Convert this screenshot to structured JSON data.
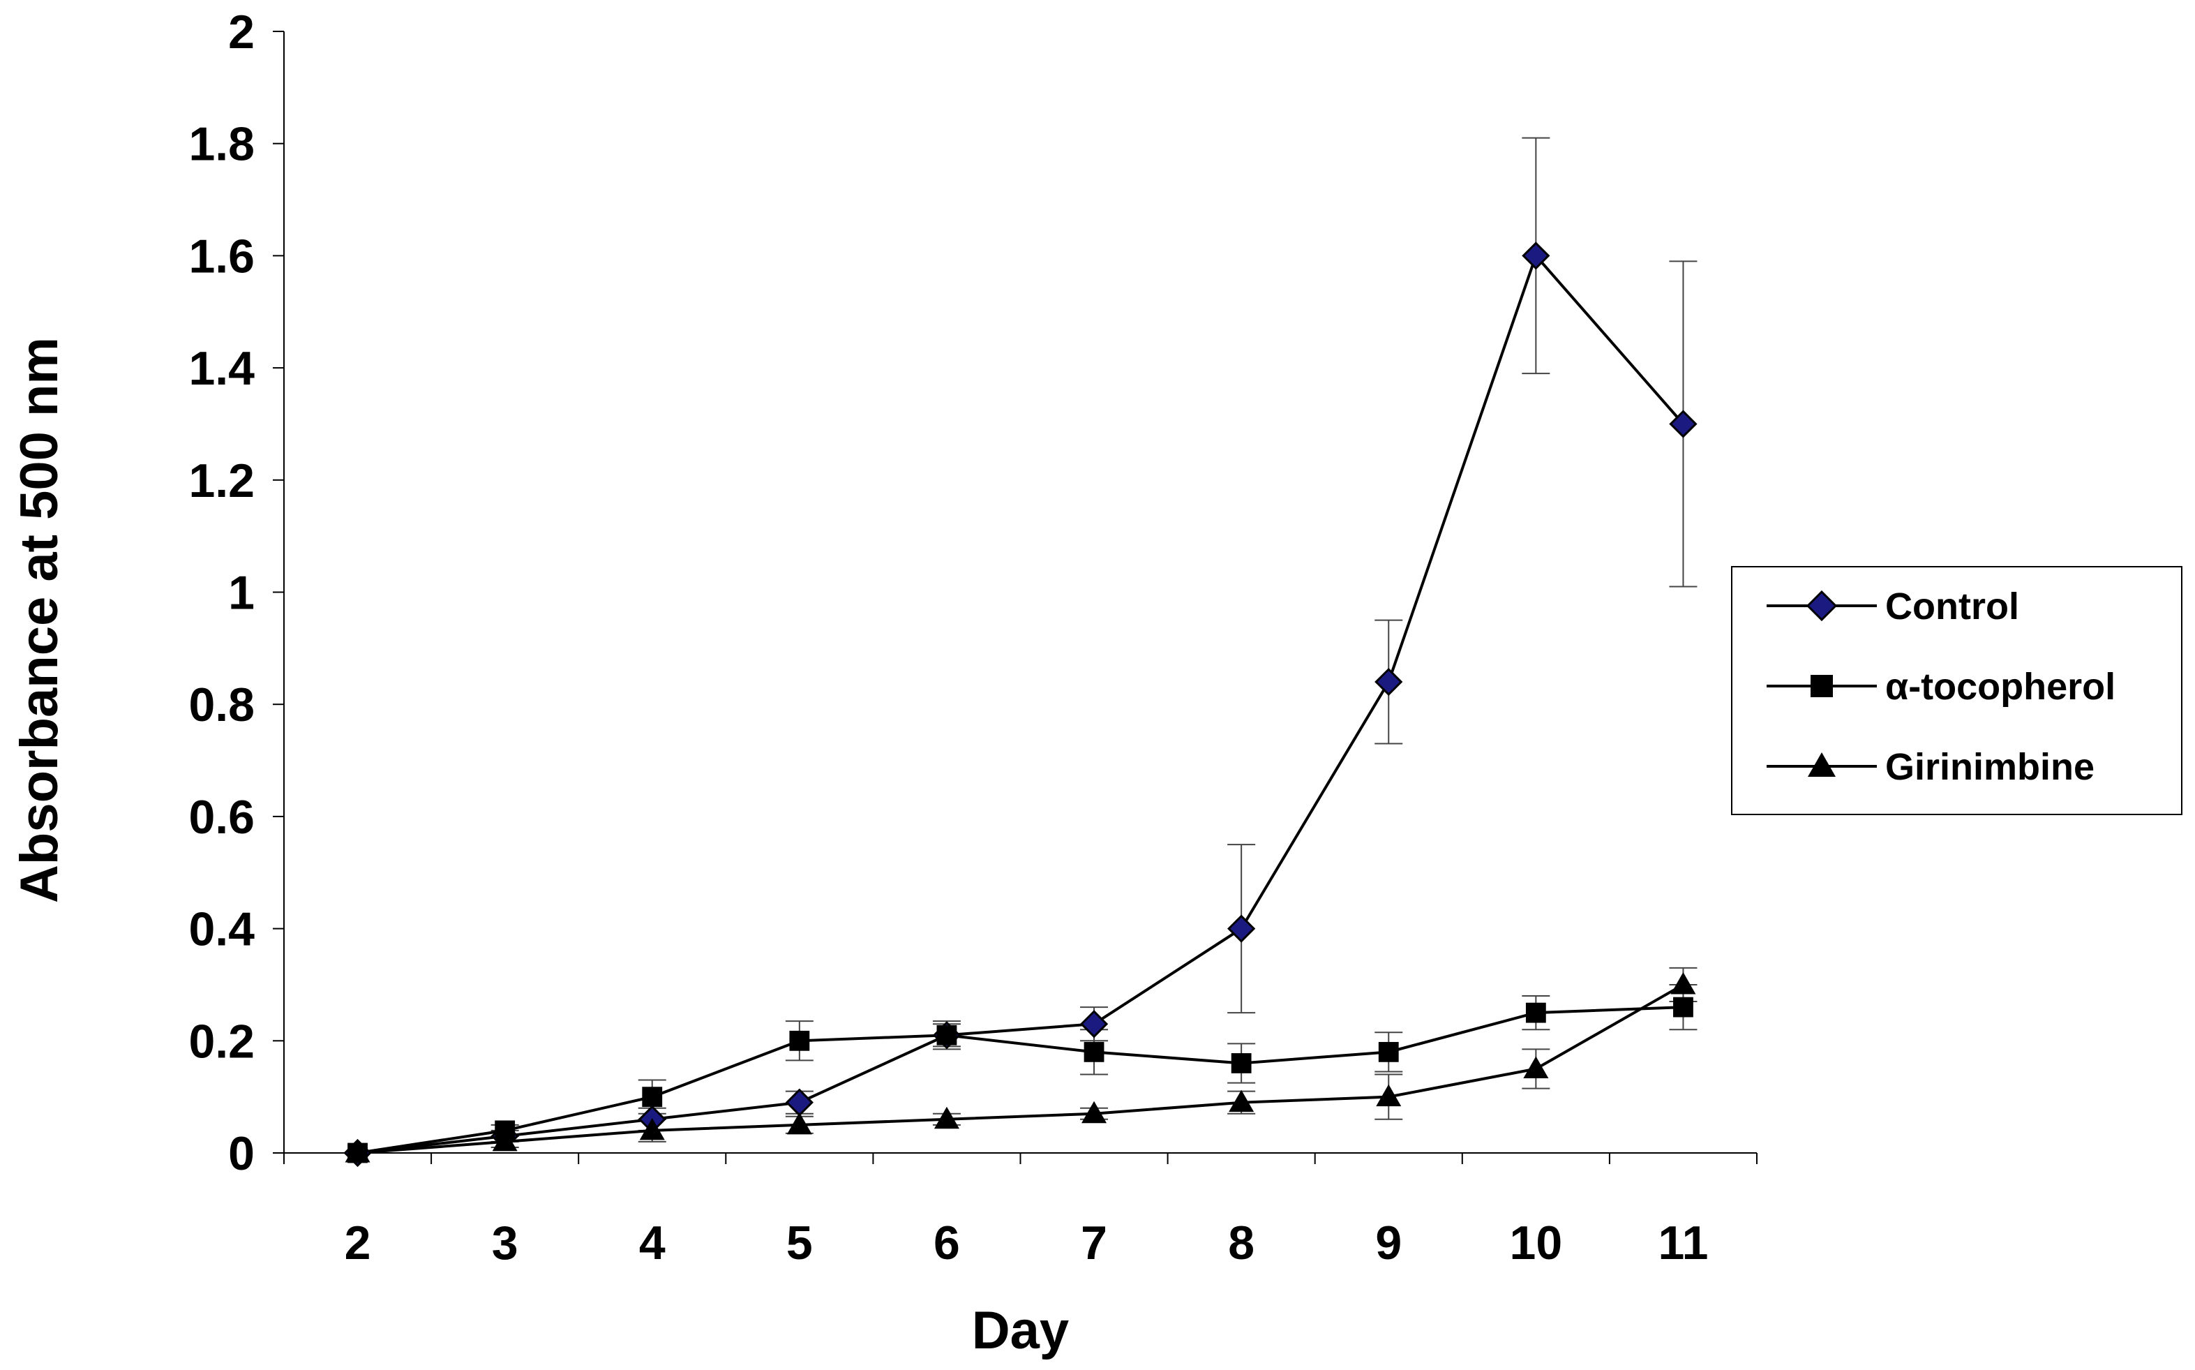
{
  "chart_data": {
    "type": "line",
    "title": "",
    "xlabel": "Day",
    "ylabel": "Absorbance at 500 nm",
    "categories": [
      "2",
      "3",
      "4",
      "5",
      "6",
      "7",
      "8",
      "9",
      "10",
      "11"
    ],
    "ylim": [
      0,
      2
    ],
    "yticks": [
      "0",
      "0.2",
      "0.4",
      "0.6",
      "0.8",
      "1",
      "1.2",
      "1.4",
      "1.6",
      "1.8",
      "2"
    ],
    "grid": false,
    "legend_position": "right",
    "series": [
      {
        "name": "Control",
        "marker": "diamond",
        "color": "#1a1a80",
        "values": [
          0,
          0.03,
          0.06,
          0.09,
          0.21,
          0.23,
          0.4,
          0.84,
          1.6,
          1.3
        ],
        "errors": [
          0,
          0.01,
          0.02,
          0.02,
          0.02,
          0.03,
          0.15,
          0.11,
          0.21,
          0.29
        ]
      },
      {
        "name": "α-tocopherol",
        "marker": "square",
        "color": "#000000",
        "values": [
          0,
          0.04,
          0.1,
          0.2,
          0.21,
          0.18,
          0.16,
          0.18,
          0.25,
          0.26
        ],
        "errors": [
          0,
          0.01,
          0.03,
          0.035,
          0.025,
          0.04,
          0.035,
          0.035,
          0.03,
          0.04
        ]
      },
      {
        "name": "Girinimbine",
        "marker": "triangle",
        "color": "#000000",
        "values": [
          0,
          0.02,
          0.04,
          0.05,
          0.06,
          0.07,
          0.09,
          0.1,
          0.15,
          0.3
        ],
        "errors": [
          0,
          0.01,
          0.02,
          0.015,
          0.01,
          0.01,
          0.02,
          0.04,
          0.035,
          0.03
        ]
      }
    ]
  }
}
